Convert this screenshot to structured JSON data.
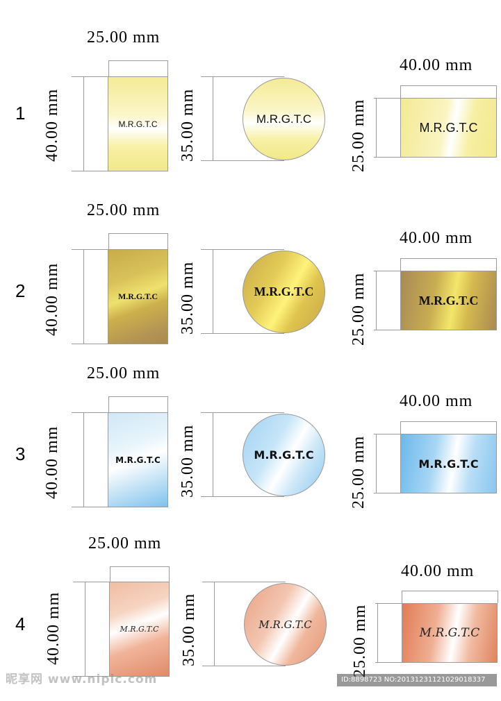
{
  "rows": [
    {
      "number": "1",
      "width_dim": "25.00 mm",
      "height_dim": "40.00 mm",
      "circle_dim": "35.00 mm",
      "rect_h_width_dim": "40.00 mm",
      "rect_h_height_dim": "25.00 mm",
      "finish": "light-yellow",
      "label_rect": "M.R.G.T.C",
      "label_circle": "M.R.G.T.C",
      "label_rect_h": "M.R.G.T.C"
    },
    {
      "number": "2",
      "width_dim": "25.00 mm",
      "height_dim": "40.00 mm",
      "circle_dim": "35.00 mm",
      "rect_h_width_dim": "40.00 mm",
      "rect_h_height_dim": "25.00 mm",
      "finish": "gold",
      "label_rect": "M.R.G.T.C",
      "label_circle": "M.R.G.T.C",
      "label_rect_h": "M.R.G.T.C"
    },
    {
      "number": "3",
      "width_dim": "25.00 mm",
      "height_dim": "40.00 mm",
      "circle_dim": "35.00 mm",
      "rect_h_width_dim": "40.00 mm",
      "rect_h_height_dim": "25.00 mm",
      "finish": "light-blue",
      "label_rect": "M.R.G.T.C",
      "label_circle": "M.R.G.T.C",
      "label_rect_h": "M.R.G.T.C"
    },
    {
      "number": "4",
      "width_dim": "25.00 mm",
      "height_dim": "40.00 mm",
      "circle_dim": "35.00 mm",
      "rect_h_width_dim": "40.00 mm",
      "rect_h_height_dim": "25.00 mm",
      "finish": "copper",
      "label_rect": "M.R.G.T.C",
      "label_circle": "M.R.G.T.C",
      "label_rect_h": "M.R.G.T.C"
    }
  ],
  "watermark": {
    "left_text": "昵享网 www.nipic.com",
    "right_text": "ID:8898723 NO:20131231121029018337"
  },
  "colors": {
    "background": "#ffffff",
    "dimension_line": "#9a9a9a"
  }
}
